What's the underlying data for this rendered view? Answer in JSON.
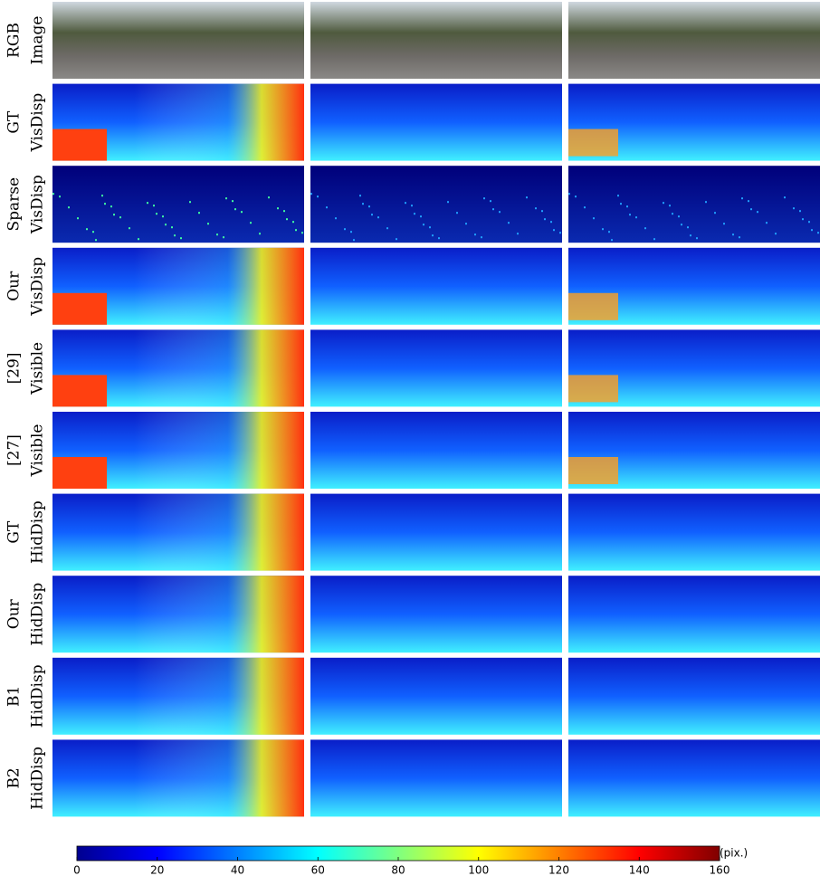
{
  "figure": {
    "rows": [
      [
        "RGB",
        "Image"
      ],
      [
        "GT",
        "VisDisp"
      ],
      [
        "Sparse",
        "VisDisp"
      ],
      [
        "Our",
        "VisDisp"
      ],
      [
        "[29]",
        "Visible"
      ],
      [
        "[27]",
        "Visible"
      ],
      [
        "GT",
        "HidDisp"
      ],
      [
        "Our",
        "HidDisp"
      ],
      [
        "B1",
        "HidDisp"
      ],
      [
        "B2",
        "HidDisp"
      ]
    ],
    "colorbar": {
      "range": [
        0,
        160
      ],
      "ticks": [
        0,
        20,
        40,
        60,
        80,
        100,
        120,
        140,
        160
      ],
      "unit": "(pix.)"
    }
  }
}
